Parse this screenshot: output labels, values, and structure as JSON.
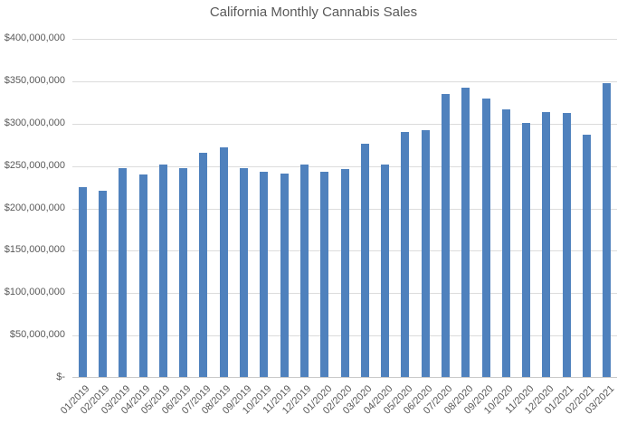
{
  "chart_data": {
    "type": "bar",
    "title": "California Monthly Cannabis Sales",
    "xlabel": "",
    "ylabel": "",
    "categories": [
      "01/2019",
      "02/2019",
      "03/2019",
      "04/2019",
      "05/2019",
      "06/2019",
      "07/2019",
      "08/2019",
      "09/2019",
      "10/2019",
      "11/2019",
      "12/2019",
      "01/2020",
      "02/2020",
      "03/2020",
      "04/2020",
      "05/2020",
      "06/2020",
      "07/2020",
      "08/2020",
      "09/2020",
      "10/2020",
      "11/2020",
      "12/2020",
      "01/2021",
      "02/2021",
      "03/2021"
    ],
    "values": [
      225000000,
      221000000,
      248000000,
      240000000,
      252000000,
      248000000,
      266000000,
      272000000,
      248000000,
      243000000,
      241000000,
      252000000,
      243000000,
      246000000,
      276000000,
      252000000,
      290000000,
      292000000,
      335000000,
      342000000,
      330000000,
      317000000,
      301000000,
      314000000,
      313000000,
      287000000,
      348000000
    ],
    "ylim": [
      0,
      400000000
    ],
    "ytick_step": 50000000,
    "ytick_labels": [
      "$-",
      "$50,000,000",
      "$100,000,000",
      "$150,000,000",
      "$200,000,000",
      "$250,000,000",
      "$300,000,000",
      "$350,000,000",
      "$400,000,000"
    ],
    "grid": true,
    "legend": false
  },
  "colors": {
    "bar": "#4f81bd",
    "gridline": "#dcdcdc",
    "axis_line": "#c9c9c9",
    "text": "#595959",
    "background": "#ffffff"
  }
}
